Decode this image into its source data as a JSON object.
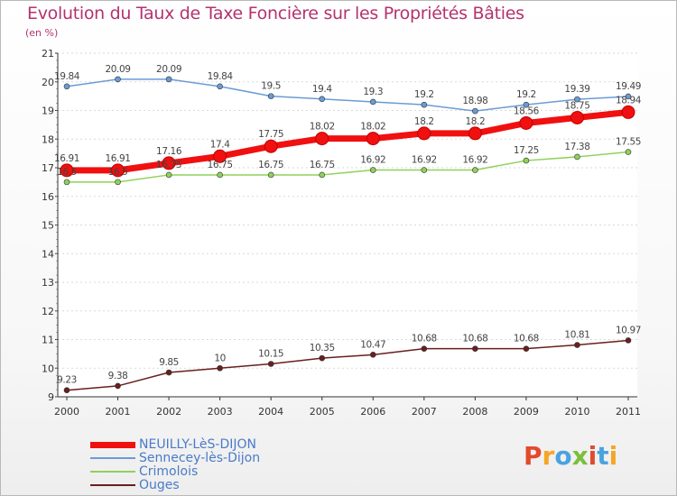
{
  "title": "Evolution du Taux de Taxe Foncière sur les Propriétés Bâties",
  "unit_label": "(en %)",
  "brand": {
    "parts": [
      {
        "text": "P",
        "color": "#e24a2d"
      },
      {
        "text": "r",
        "color": "#f5a623"
      },
      {
        "text": "o",
        "color": "#4aa3df"
      },
      {
        "text": "x",
        "color": "#7bbf3a"
      },
      {
        "text": "i",
        "color": "#e24a2d"
      },
      {
        "text": "t",
        "color": "#4aa3df"
      },
      {
        "text": "i",
        "color": "#f5a623"
      }
    ]
  },
  "chart_data": {
    "type": "line",
    "x": [
      "2000",
      "2001",
      "2002",
      "2003",
      "2004",
      "2005",
      "2006",
      "2007",
      "2008",
      "2009",
      "2010",
      "2011"
    ],
    "yticks": [
      "9",
      "10",
      "11",
      "12",
      "13",
      "14",
      "15",
      "16",
      "17",
      "18",
      "19",
      "20",
      "21"
    ],
    "ylim": [
      9,
      21
    ],
    "series": [
      {
        "name": "Sennecey-lès-Dijon",
        "color": "#6b9bd6",
        "width": 1.5,
        "marker": 3,
        "values": [
          19.84,
          20.09,
          20.09,
          19.84,
          19.5,
          19.4,
          19.3,
          19.2,
          18.98,
          19.2,
          19.39,
          19.49
        ],
        "labels": [
          "19.84",
          "20.09",
          "20.09",
          "19.84",
          "19.5",
          "19.4",
          "19.3",
          "19.2",
          "18.98",
          "19.2",
          "19.39",
          "19.49"
        ]
      },
      {
        "name": "Crimolois",
        "color": "#8fd15b",
        "width": 1.5,
        "marker": 3,
        "values": [
          16.5,
          16.5,
          16.75,
          16.75,
          16.75,
          16.75,
          16.92,
          16.92,
          16.92,
          17.25,
          17.38,
          17.55
        ],
        "labels": [
          "16.5",
          "16.5",
          "16.75",
          "16.75",
          "16.75",
          "16.75",
          "16.92",
          "16.92",
          "16.92",
          "17.25",
          "17.38",
          "17.55"
        ]
      },
      {
        "name": "Ouges",
        "color": "#6a1e1e",
        "width": 1.5,
        "marker": 3,
        "values": [
          9.23,
          9.38,
          9.85,
          10,
          10.15,
          10.35,
          10.47,
          10.68,
          10.68,
          10.68,
          10.81,
          10.97
        ],
        "labels": [
          "9.23",
          "9.38",
          "9.85",
          "10",
          "10.15",
          "10.35",
          "10.47",
          "10.68",
          "10.68",
          "10.68",
          "10.81",
          "10.97"
        ]
      },
      {
        "name": "NEUILLY-LèS-DIJON",
        "color": "#f01010",
        "width": 7,
        "marker": 7,
        "values": [
          16.91,
          16.91,
          17.16,
          17.4,
          17.75,
          18.02,
          18.02,
          18.2,
          18.2,
          18.56,
          18.75,
          18.94
        ],
        "labels": [
          "16.91",
          "16.91",
          "17.16",
          "17.4",
          "17.75",
          "18.02",
          "18.02",
          "18.2",
          "18.2",
          "18.56",
          "18.75",
          "18.94"
        ]
      }
    ],
    "legend": [
      {
        "name": "NEUILLY-LèS-DIJON",
        "color": "#f01010",
        "thickness": 7
      },
      {
        "name": "Sennecey-lès-Dijon",
        "color": "#6b9bd6",
        "thickness": 2
      },
      {
        "name": "Crimolois",
        "color": "#8fd15b",
        "thickness": 2
      },
      {
        "name": "Ouges",
        "color": "#6a1e1e",
        "thickness": 2
      }
    ]
  }
}
